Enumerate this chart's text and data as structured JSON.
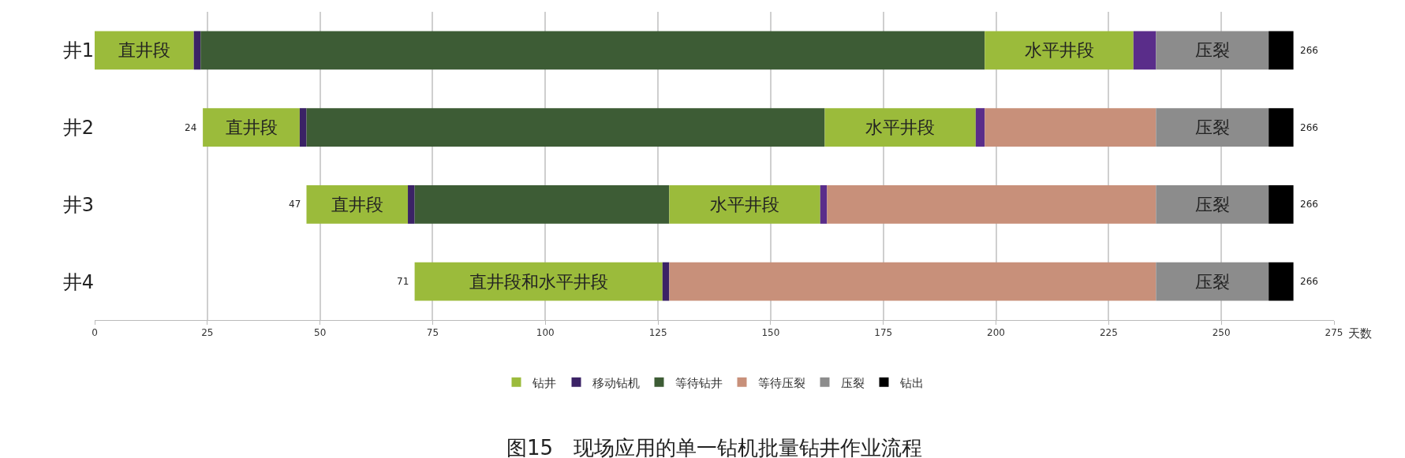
{
  "chart_data": {
    "type": "bar",
    "orientation": "horizontal",
    "title": "图15　现场应用的单一钻机批量钻井作业流程",
    "xlabel": "天数",
    "categories": [
      "井1",
      "井2",
      "井3",
      "井4"
    ],
    "series": [
      {
        "name": "钻井",
        "color": "#9bbb3b",
        "base": [
          0,
          24,
          47,
          71
        ],
        "values": [
          22,
          21.5,
          22.5,
          55
        ],
        "value_labels": [
          "直井段",
          "直井段",
          "直井段",
          "直井段和水平井段"
        ]
      },
      {
        "name": "移动钻机",
        "color": "#3b2266",
        "base": [
          22,
          45.5,
          69.5,
          126
        ],
        "values": [
          1.5,
          1.5,
          1.5,
          1.5
        ]
      },
      {
        "name": "等待钻井",
        "color": "#3d5c35",
        "base": [
          23.5,
          47,
          71,
          null
        ],
        "values": [
          174,
          115,
          56.5,
          null
        ]
      },
      {
        "color": "#9bbb3b",
        "base": [
          197.5,
          162,
          127.5,
          null
        ],
        "values": [
          33,
          33.5,
          33.5,
          null
        ],
        "value_labels": [
          "水平井段",
          "水平井段",
          "水平井段",
          null
        ]
      },
      {
        "color": "#5a2d8a",
        "base": [
          230.5,
          195.5,
          161,
          null
        ],
        "values": [
          5,
          2,
          1.5,
          null
        ]
      },
      {
        "name": "等待压裂",
        "color": "#c8907a",
        "base": [
          null,
          197.5,
          162.5,
          127.5
        ],
        "values": [
          null,
          38,
          73,
          108
        ]
      },
      {
        "name": "压裂",
        "color": "#8c8c8c",
        "base": [
          235.5,
          235.5,
          235.5,
          235.5
        ],
        "values": [
          25,
          25,
          25,
          25
        ],
        "value_labels": [
          "压裂",
          "压裂",
          "压裂",
          "压裂"
        ]
      },
      {
        "name": "钻出",
        "color": "#000000",
        "base": [
          260.5,
          260.5,
          260.5,
          260.5
        ],
        "values": [
          5.5,
          5.5,
          5.5,
          5.5
        ]
      }
    ],
    "annotations": [
      {
        "text": "24",
        "x": 24,
        "y": "井2"
      },
      {
        "text": "47",
        "x": 47,
        "y": "井3"
      },
      {
        "text": "71",
        "x": 71,
        "y": "井4"
      },
      {
        "text": "266",
        "x": 266,
        "y": "井1"
      },
      {
        "text": "266",
        "x": 266,
        "y": "井2"
      },
      {
        "text": "266",
        "x": 266,
        "y": "井3"
      },
      {
        "text": "266",
        "x": 266,
        "y": "井4"
      }
    ],
    "xlim": [
      0,
      275
    ],
    "xticks": [
      0,
      25,
      50,
      75,
      100,
      125,
      150,
      175,
      200,
      225,
      250,
      275
    ],
    "grid": "x",
    "legend": "bottom"
  }
}
